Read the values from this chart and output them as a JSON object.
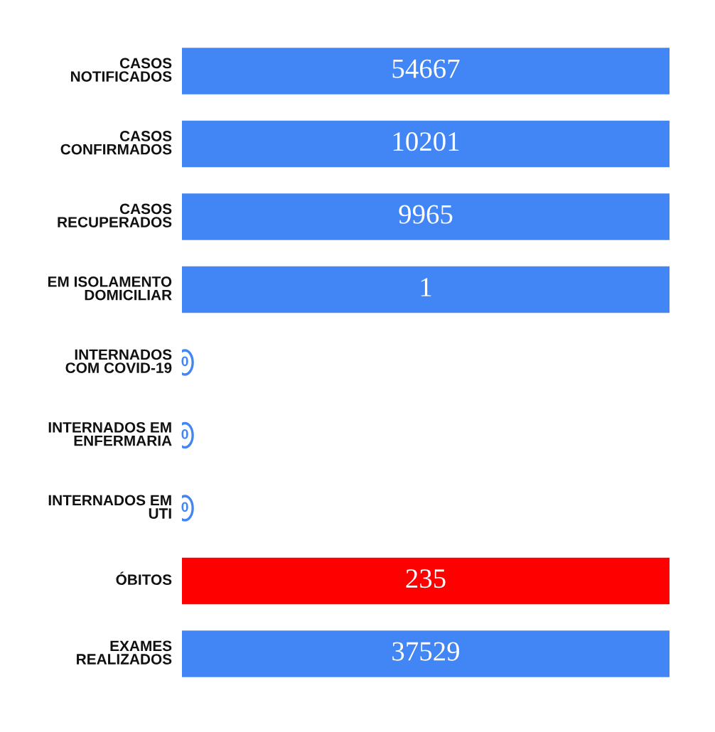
{
  "chart_data": {
    "type": "other",
    "categories": [
      "CASOS\nNOTIFICADOS",
      "CASOS\nCONFIRMADOS",
      "CASOS\nRECUPERADOS",
      "EM ISOLAMENTO\nDOMICILIAR",
      "INTERNADOS\nCOM COVID-19",
      "INTERNADOS EM\nENFERMARIA",
      "INTERNADOS EM\nUTI",
      "ÓBITOS",
      "EXAMES\nREALIZADOS"
    ],
    "values": [
      54667,
      10201,
      9965,
      1,
      0,
      0,
      0,
      235,
      37529
    ],
    "colors": [
      "#4285f4",
      "#4285f4",
      "#4285f4",
      "#4285f4",
      "#4285f4",
      "#4285f4",
      "#4285f4",
      "#ff0000",
      "#4285f4"
    ],
    "data_labels": true
  }
}
